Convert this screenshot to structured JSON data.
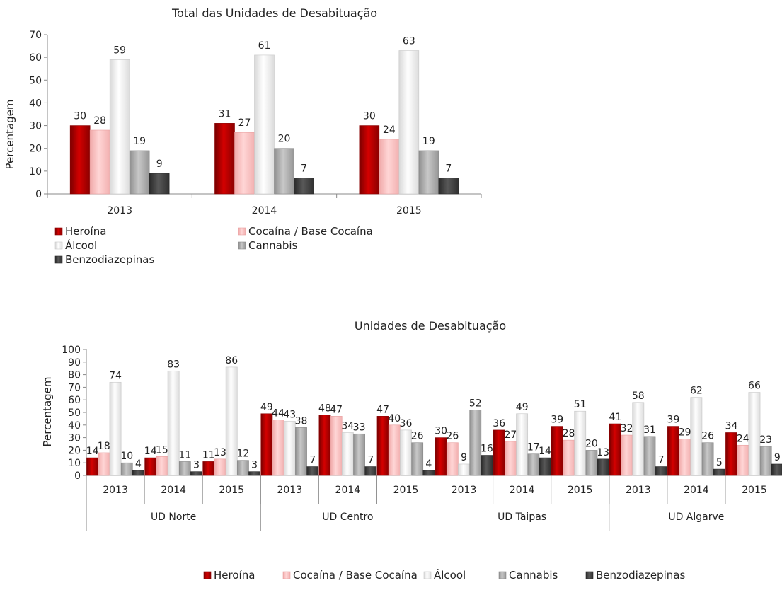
{
  "colors": {
    "Heroína": "#c40000",
    "Cocaína / Base Cocaína": "#ffc4c4",
    "Álcool": "#f4f4f4",
    "Cannabis": "#b8b8b8",
    "Benzodiazepinas": "#4a4a4a"
  },
  "chart_data": [
    {
      "type": "bar",
      "title": "Total das Unidades de Desabituação",
      "ylabel": "Percentagem",
      "xlabel": "",
      "ylim": [
        0,
        70
      ],
      "yticks": [
        0,
        10,
        20,
        30,
        40,
        50,
        60,
        70
      ],
      "grid": false,
      "legend_position": "bottom",
      "categories": [
        "2013",
        "2014",
        "2015"
      ],
      "series": [
        {
          "name": "Heroína",
          "values": [
            30,
            31,
            30
          ]
        },
        {
          "name": "Cocaína / Base Cocaína",
          "values": [
            28,
            27,
            24
          ]
        },
        {
          "name": "Álcool",
          "values": [
            59,
            61,
            63
          ]
        },
        {
          "name": "Cannabis",
          "values": [
            19,
            20,
            19
          ]
        },
        {
          "name": "Benzodiazepinas",
          "values": [
            9,
            7,
            7
          ]
        }
      ]
    },
    {
      "type": "bar",
      "title": "Unidades de Desabituação",
      "ylabel": "Percentagem",
      "xlabel": "",
      "ylim": [
        0,
        100
      ],
      "yticks": [
        0,
        10,
        20,
        30,
        40,
        50,
        60,
        70,
        80,
        90,
        100
      ],
      "grid": false,
      "legend_position": "bottom",
      "categories": [
        "2013",
        "2014",
        "2015",
        "2013",
        "2014",
        "2015",
        "2013",
        "2014",
        "2015",
        "2013",
        "2014",
        "2015"
      ],
      "groups": [
        "UD Norte",
        "UD Centro",
        "UD Taipas",
        "UD Algarve"
      ],
      "series": [
        {
          "name": "Heroína",
          "values": [
            14,
            14,
            11,
            49,
            48,
            47,
            30,
            36,
            39,
            41,
            39,
            34
          ]
        },
        {
          "name": "Cocaína / Base Cocaína",
          "values": [
            18,
            15,
            13,
            44,
            47,
            40,
            26,
            27,
            28,
            32,
            29,
            24
          ]
        },
        {
          "name": "Álcool",
          "values": [
            74,
            83,
            86,
            43,
            34,
            36,
            9,
            49,
            51,
            58,
            62,
            66
          ]
        },
        {
          "name": "Cannabis",
          "values": [
            10,
            11,
            12,
            38,
            33,
            26,
            52,
            17,
            20,
            31,
            26,
            23
          ]
        },
        {
          "name": "Benzodiazepinas",
          "values": [
            4,
            3,
            3,
            7,
            7,
            4,
            16,
            14,
            13,
            7,
            5,
            9
          ]
        }
      ]
    }
  ]
}
